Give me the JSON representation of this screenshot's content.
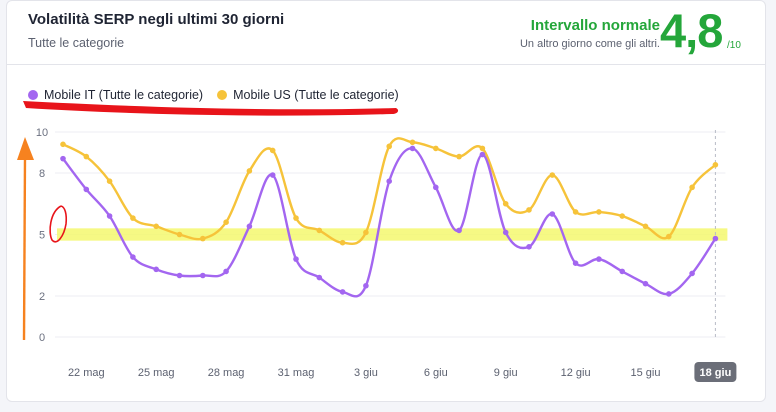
{
  "card": {
    "title": "Volatilità SERP negli ultimi 30 giorni",
    "subtitle": "Tutte le categorie",
    "status": "Intervallo normale",
    "status_sub": "Un altro giorno come gli altri.",
    "score": "4,8",
    "score_den": "/10"
  },
  "colors": {
    "mobile_it": "#a366f0",
    "mobile_us": "#f6c33a",
    "normal_band": "#f4f86f",
    "status_green": "#24a63a",
    "annotation_red": "#e8141a",
    "annotation_orange": "#f6821f"
  },
  "chart_data": {
    "type": "line",
    "x": [
      "21 mag",
      "22 mag",
      "23 mag",
      "24 mag",
      "25 mag",
      "26 mag",
      "27 mag",
      "28 mag",
      "29 mag",
      "30 mag",
      "31 mag",
      "1 giu",
      "2 giu",
      "3 giu",
      "4 giu",
      "5 giu",
      "6 giu",
      "7 giu",
      "8 giu",
      "9 giu",
      "10 giu",
      "11 giu",
      "12 giu",
      "13 giu",
      "14 giu",
      "15 giu",
      "16 giu",
      "17 giu",
      "18 giu"
    ],
    "x_tick_labels": [
      "22 mag",
      "25 mag",
      "28 mag",
      "31 mag",
      "3 giu",
      "6 giu",
      "9 giu",
      "12 giu",
      "15 giu",
      "18 giu"
    ],
    "y_tick_labels": [
      "0",
      "2",
      "5",
      "8",
      "10"
    ],
    "ylim": [
      0,
      10
    ],
    "highlight_band": [
      4.7,
      5.3
    ],
    "selected_label": "18 giu",
    "grid": true,
    "legend_position": "top-left",
    "series": [
      {
        "name": "Mobile IT (Tutte le categorie)",
        "values": [
          8.7,
          7.2,
          5.9,
          3.9,
          3.3,
          3.0,
          3.0,
          3.2,
          5.4,
          7.9,
          3.8,
          2.9,
          2.2,
          2.5,
          7.6,
          9.2,
          7.3,
          5.2,
          8.9,
          5.1,
          4.4,
          6.0,
          3.6,
          3.8,
          3.2,
          2.6,
          2.1,
          3.1,
          4.8
        ]
      },
      {
        "name": "Mobile US (Tutte le categorie)",
        "values": [
          9.4,
          8.8,
          7.6,
          5.8,
          5.4,
          5.0,
          4.8,
          5.6,
          8.1,
          9.1,
          5.8,
          5.2,
          4.6,
          5.1,
          9.3,
          9.5,
          9.2,
          8.8,
          9.2,
          6.5,
          6.2,
          7.9,
          6.1,
          6.1,
          5.9,
          5.4,
          4.9,
          7.3,
          8.4
        ]
      }
    ]
  }
}
